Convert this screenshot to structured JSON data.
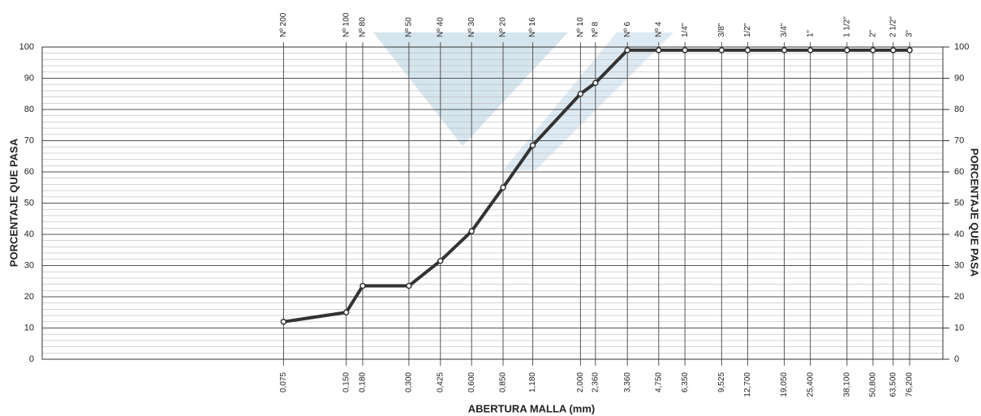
{
  "chart_data": {
    "type": "line",
    "x_label": "ABERTURA MALLA (mm)",
    "y_label": "PORCENTAJE QUE PASA",
    "x": [
      0.075,
      0.15,
      0.18,
      0.3,
      0.425,
      0.6,
      0.85,
      1.18,
      2.0,
      2.36,
      3.36,
      4.75,
      6.35,
      9.525,
      12.7,
      19.05,
      25.4,
      38.1,
      50.8,
      63.5,
      76.2
    ],
    "series": [
      {
        "color": "#333333",
        "values": [
          12,
          15,
          23.5,
          23.5,
          31.5,
          41,
          55,
          68.5,
          85,
          88.5,
          99,
          99,
          99,
          99,
          99,
          99,
          99,
          99,
          99,
          99,
          99
        ]
      }
    ],
    "xscale": "log",
    "xlim": [
      0.0052,
      110
    ],
    "xticks": [
      {
        "value": 0.075,
        "label": "0,075"
      },
      {
        "value": 0.15,
        "label": "0,150"
      },
      {
        "value": 0.18,
        "label": "0,180"
      },
      {
        "value": 0.3,
        "label": "0,300"
      },
      {
        "value": 0.425,
        "label": "0,425"
      },
      {
        "value": 0.6,
        "label": "0,600"
      },
      {
        "value": 0.85,
        "label": "0,850"
      },
      {
        "value": 1.18,
        "label": "1,180"
      },
      {
        "value": 2.0,
        "label": "2,000"
      },
      {
        "value": 2.36,
        "label": "2,360"
      },
      {
        "value": 3.36,
        "label": "3,360"
      },
      {
        "value": 4.75,
        "label": "4,750"
      },
      {
        "value": 6.35,
        "label": "6,350"
      },
      {
        "value": 9.525,
        "label": "9,525"
      },
      {
        "value": 12.7,
        "label": "12,700"
      },
      {
        "value": 19.05,
        "label": "19,050"
      },
      {
        "value": 25.4,
        "label": "25,400"
      },
      {
        "value": 38.1,
        "label": "38,100"
      },
      {
        "value": 50.8,
        "label": "50,800"
      },
      {
        "value": 63.5,
        "label": "63,500"
      },
      {
        "value": 76.2,
        "label": "76,200"
      }
    ],
    "sieves": [
      "Nº 200",
      "Nº 100",
      "Nº 80",
      "Nº 50",
      "Nº 40",
      "Nº 30",
      "Nº 20",
      "Nº 16",
      "Nº 10",
      "Nº 8",
      "Nº 6",
      "Nº 4",
      "1/4\"",
      "3/8\"",
      "1/2\"",
      "3/4\"",
      "1\"",
      "1 1/2\"",
      "2\"",
      "2 1/2\"",
      "3\""
    ],
    "ylim": [
      0,
      100
    ],
    "yticks": [
      0,
      10,
      20,
      30,
      40,
      50,
      60,
      70,
      80,
      90,
      100
    ],
    "minor_ystep": 2,
    "grid": true
  }
}
